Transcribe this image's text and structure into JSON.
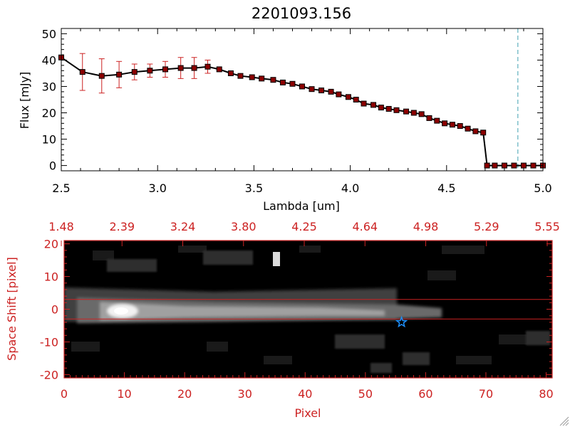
{
  "top_chart": {
    "title": "2201093.156",
    "xlabel": "Lambda [um]",
    "ylabel": "Flux [mJy]"
  },
  "bottom_panel": {
    "xlabel": "Pixel",
    "ylabel": "Space Shift [pixel]"
  },
  "colors": {
    "axis_black": "#000000",
    "axis_red": "#cc2222",
    "marker_fill": "#8b0000",
    "error_bar": "#cc2222",
    "dashed_line": "#3fa0b0",
    "star": "#1e90ff"
  },
  "chart_data": [
    {
      "type": "line",
      "title": "2201093.156",
      "xlabel": "Lambda [um]",
      "ylabel": "Flux [mJy]",
      "xlim": [
        2.5,
        5.0
      ],
      "ylim": [
        -2,
        52
      ],
      "xticks": [
        "2.5",
        "3.0",
        "3.5",
        "4.0",
        "4.5",
        "5.0"
      ],
      "yticks": [
        "0",
        "10",
        "20",
        "30",
        "40",
        "50"
      ],
      "grid": false,
      "series": [
        {
          "x": [
            2.5,
            2.61,
            2.71,
            2.8,
            2.88,
            2.96,
            3.04,
            3.12,
            3.19,
            3.26,
            3.32,
            3.38,
            3.43,
            3.49,
            3.54,
            3.6,
            3.65,
            3.7,
            3.75,
            3.8,
            3.85,
            3.9,
            3.94,
            3.99,
            4.03,
            4.07,
            4.12,
            4.16,
            4.2,
            4.24,
            4.29,
            4.33,
            4.37,
            4.41,
            4.45,
            4.49,
            4.53,
            4.57,
            4.61,
            4.65,
            4.69,
            4.71,
            4.75,
            4.8,
            4.85,
            4.9,
            4.95,
            5.0
          ],
          "y": [
            41,
            35.5,
            34,
            34.5,
            35.5,
            36,
            36.5,
            37,
            37,
            37.5,
            36.5,
            35,
            34,
            33.5,
            33,
            32.5,
            31.5,
            31,
            30,
            29,
            28.5,
            28,
            27,
            26,
            25,
            23.5,
            23,
            22,
            21.5,
            21,
            20.5,
            20,
            19.5,
            18,
            17,
            16,
            15.5,
            15,
            14,
            13,
            12.5,
            0,
            0,
            0,
            0,
            0,
            0,
            0
          ],
          "yerr": [
            0,
            7,
            6.5,
            5,
            3,
            2.5,
            3,
            4,
            4,
            2.5,
            0,
            0,
            0,
            0,
            0,
            0,
            0,
            0,
            0,
            0,
            0,
            0,
            0,
            0,
            0,
            0,
            0,
            0,
            0,
            0,
            0,
            0,
            0,
            0,
            0,
            0,
            0,
            0,
            0,
            0,
            0,
            0,
            0,
            0,
            0,
            0,
            0,
            0
          ]
        }
      ],
      "vline_x": 4.87
    },
    {
      "type": "heatmap",
      "xlabel": "Pixel",
      "ylabel": "Space Shift [pixel]",
      "xlim": [
        0,
        81
      ],
      "ylim": [
        -21,
        21
      ],
      "xticks": [
        "0",
        "10",
        "20",
        "30",
        "40",
        "50",
        "60",
        "70",
        "80"
      ],
      "yticks": [
        "-20",
        "-10",
        "0",
        "10",
        "20"
      ],
      "top_tick_labels": [
        "1.48",
        "2.39",
        "3.24",
        "3.80",
        "4.25",
        "4.64",
        "4.98",
        "5.29",
        "5.55"
      ],
      "hlines": [
        3,
        -3
      ],
      "marker": {
        "shape": "star",
        "x": 56,
        "y": -4
      }
    }
  ]
}
